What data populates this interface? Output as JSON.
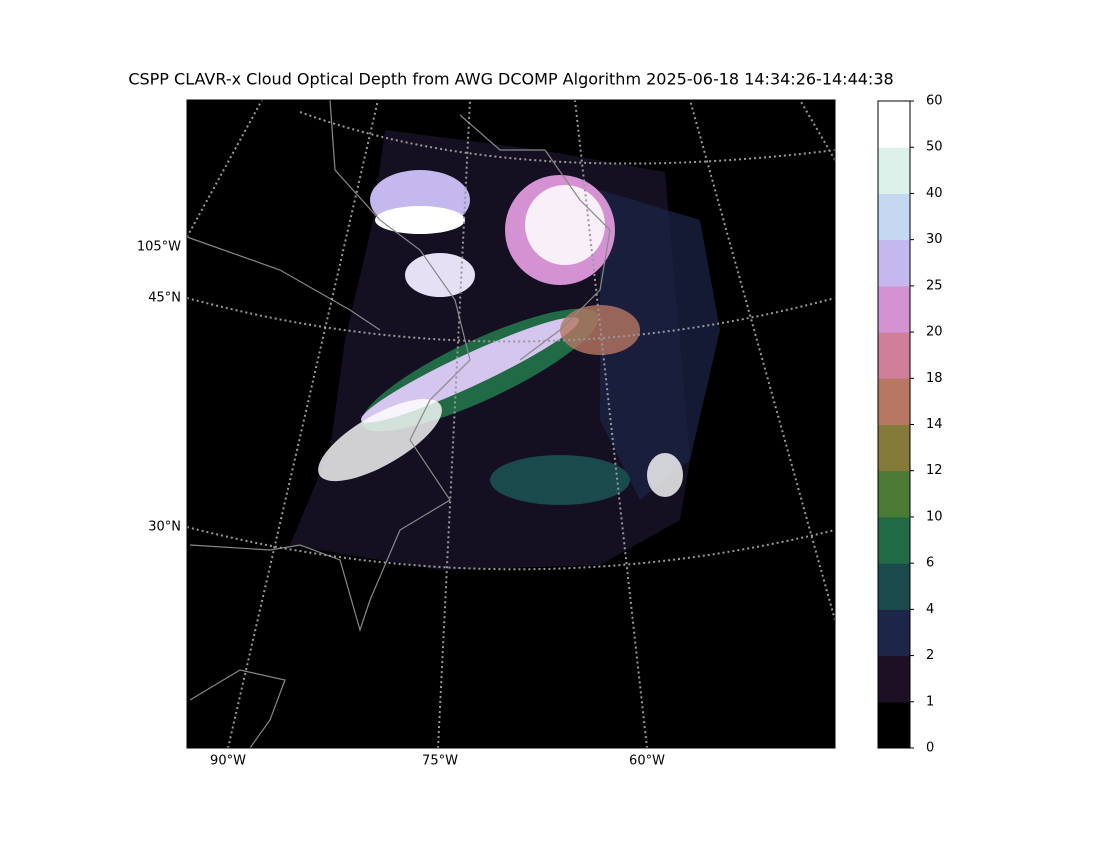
{
  "title": "CSPP CLAVR-x Cloud Optical Depth from AWG DCOMP Algorithm 2025-06-18 14:34:26-14:44:38",
  "map": {
    "longitude_labels": [
      "90°W",
      "75°W",
      "60°W",
      "105°W"
    ],
    "latitude_labels": [
      "45°N",
      "30°N"
    ]
  },
  "colorbar": {
    "levels": [
      0,
      1,
      2,
      4,
      6,
      10,
      12,
      14,
      18,
      20,
      25,
      30,
      40,
      50,
      60
    ],
    "colors": [
      "#000000",
      "#1e1024",
      "#1d2548",
      "#1a4a4c",
      "#206a46",
      "#4a7a34",
      "#847a3a",
      "#b87762",
      "#d07f9a",
      "#d592d2",
      "#c4b8ee",
      "#c4d9f1",
      "#dcf1ea",
      "#ffffff"
    ]
  }
}
